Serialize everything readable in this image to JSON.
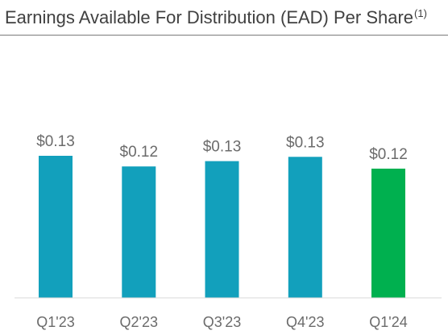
{
  "header": {
    "title": "Earnings Available For Distribution (EAD) Per Share",
    "footnote_marker": "(1)"
  },
  "chart_data": {
    "type": "bar",
    "title": "Earnings Available For Distribution (EAD) Per Share",
    "categories": [
      "Q1'23",
      "Q2'23",
      "Q3'23",
      "Q4'23",
      "Q1'24"
    ],
    "values": [
      0.133,
      0.123,
      0.128,
      0.132,
      0.121
    ],
    "data_labels": [
      "$0.13",
      "$0.12",
      "$0.13",
      "$0.13",
      "$0.12"
    ],
    "colors": [
      "#12a0bc",
      "#12a0bc",
      "#12a0bc",
      "#12a0bc",
      "#00b04f"
    ],
    "ylim": [
      0,
      0.133
    ],
    "xlabel": "",
    "ylabel": "",
    "grid": false,
    "legend": "none"
  }
}
